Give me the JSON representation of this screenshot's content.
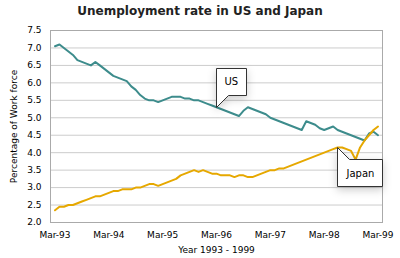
{
  "chart_data": {
    "type": "line",
    "title": "Unemployment rate in US and Japan",
    "x_label": "Year 1993 - 1999",
    "y_label": "Percentage of Work force",
    "x": [
      0,
      1,
      2,
      3,
      4,
      5,
      6,
      7,
      8,
      9,
      10,
      11,
      12,
      13,
      14,
      15,
      16,
      17,
      18,
      19,
      20,
      21,
      22,
      23,
      24,
      25,
      26,
      27,
      28,
      29,
      30,
      31,
      32,
      33,
      34,
      35,
      36,
      37,
      38,
      39,
      40,
      41,
      42,
      43,
      44,
      45,
      46,
      47,
      48,
      49,
      50,
      51,
      52,
      53,
      54,
      55,
      56,
      57,
      58,
      59,
      60,
      61,
      62,
      63,
      64,
      65,
      66,
      67,
      68,
      69,
      70,
      71,
      72
    ],
    "xlim": [
      -1,
      73
    ],
    "xticks": [
      {
        "value": 0,
        "label": "Mar-93"
      },
      {
        "value": 12,
        "label": "Mar-94"
      },
      {
        "value": 24,
        "label": "Mar-95"
      },
      {
        "value": 36,
        "label": "Mar-96"
      },
      {
        "value": 48,
        "label": "Mar-97"
      },
      {
        "value": 60,
        "label": "Mar-98"
      },
      {
        "value": 72,
        "label": "Mar-99"
      }
    ],
    "ylim": [
      2.0,
      7.5
    ],
    "yticks": [
      {
        "value": 2.0,
        "label": "2.0"
      },
      2.5,
      {
        "value": 3.0,
        "label": "3.0"
      },
      3.5,
      {
        "value": 4.0,
        "label": "4.0"
      },
      4.5,
      {
        "value": 5.0,
        "label": "5.0"
      },
      5.5,
      {
        "value": 6.0,
        "label": "6.0"
      },
      6.5,
      {
        "value": 7.0,
        "label": "7.0"
      },
      7.5
    ],
    "grid": true,
    "series": [
      {
        "name": "US",
        "color": "#3d8c8c",
        "values": [
          7.05,
          7.1,
          7.0,
          6.9,
          6.8,
          6.65,
          6.6,
          6.55,
          6.5,
          6.6,
          6.5,
          6.4,
          6.3,
          6.2,
          6.15,
          6.1,
          6.05,
          5.9,
          5.8,
          5.65,
          5.55,
          5.5,
          5.5,
          5.45,
          5.5,
          5.55,
          5.6,
          5.6,
          5.6,
          5.55,
          5.55,
          5.5,
          5.5,
          5.45,
          5.4,
          5.35,
          5.3,
          5.25,
          5.2,
          5.15,
          5.1,
          5.05,
          5.2,
          5.3,
          5.25,
          5.2,
          5.15,
          5.1,
          5.0,
          4.95,
          4.9,
          4.85,
          4.8,
          4.75,
          4.7,
          4.65,
          4.9,
          4.85,
          4.8,
          4.7,
          4.65,
          4.7,
          4.75,
          4.65,
          4.6,
          4.55,
          4.5,
          4.45,
          4.4,
          4.35,
          4.55,
          4.6,
          4.5
        ]
      },
      {
        "name": "Japan",
        "color": "#e6a800",
        "values": [
          2.35,
          2.45,
          2.45,
          2.5,
          2.5,
          2.55,
          2.6,
          2.65,
          2.7,
          2.75,
          2.75,
          2.8,
          2.85,
          2.9,
          2.9,
          2.95,
          2.95,
          2.95,
          3.0,
          3.0,
          3.05,
          3.1,
          3.1,
          3.05,
          3.1,
          3.15,
          3.2,
          3.25,
          3.35,
          3.4,
          3.45,
          3.5,
          3.45,
          3.5,
          3.45,
          3.4,
          3.4,
          3.35,
          3.35,
          3.35,
          3.3,
          3.35,
          3.35,
          3.3,
          3.3,
          3.35,
          3.4,
          3.45,
          3.5,
          3.5,
          3.55,
          3.55,
          3.6,
          3.65,
          3.7,
          3.75,
          3.8,
          3.85,
          3.9,
          3.95,
          4.0,
          4.05,
          4.1,
          4.15,
          4.15,
          4.1,
          4.05,
          3.8,
          4.15,
          4.35,
          4.5,
          4.65,
          4.75
        ]
      }
    ],
    "annotations": [
      {
        "text": "US",
        "x": 36,
        "y": 5.3
      },
      {
        "text": "Japan",
        "x": 63,
        "y": 4.15
      }
    ]
  }
}
